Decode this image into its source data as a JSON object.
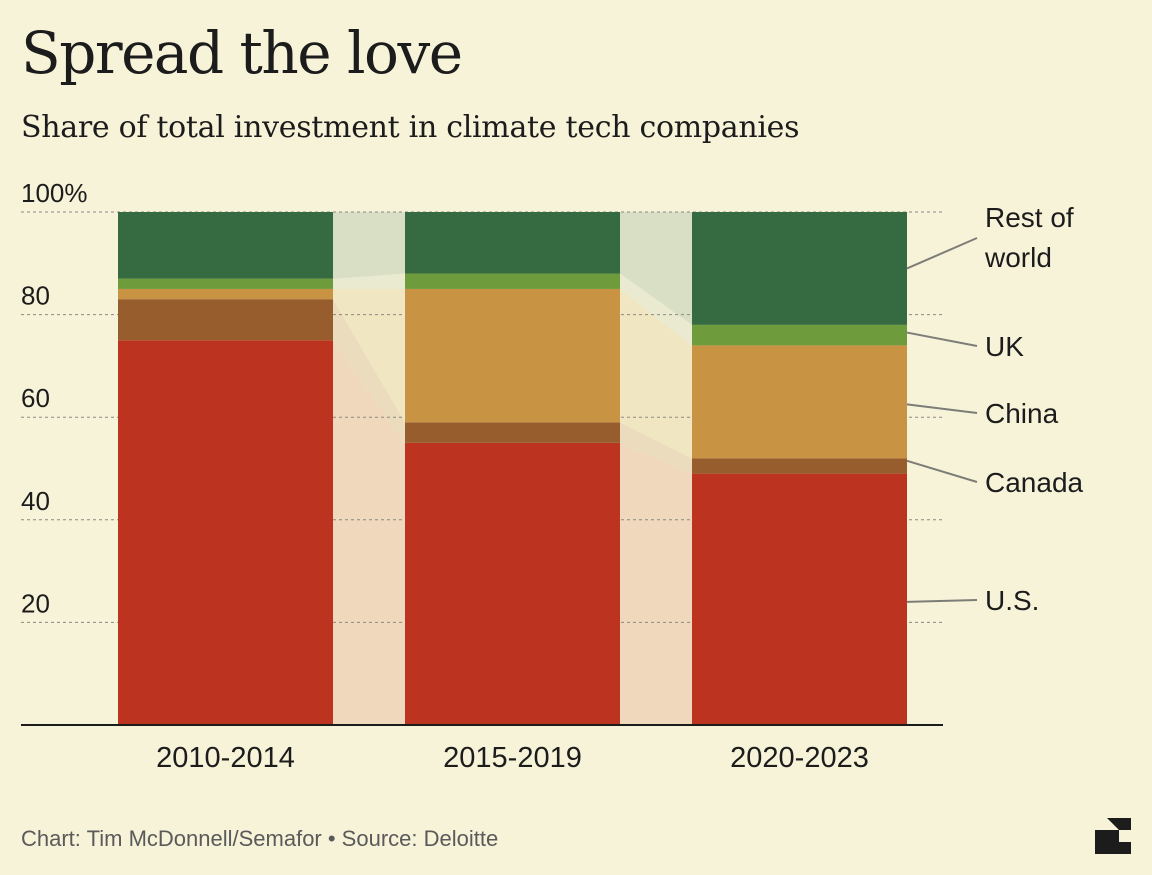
{
  "title": "Spread the love",
  "subtitle": "Share of total investment in climate tech companies",
  "footer": "Chart: Tim McDonnell/Semafor • Source: Deloitte",
  "chart_data": {
    "type": "bar",
    "stacked": true,
    "categories": [
      "2010-2014",
      "2015-2019",
      "2020-2023"
    ],
    "ylim": [
      0,
      100
    ],
    "y_ticks": [
      {
        "value": 20,
        "label": "20"
      },
      {
        "value": 40,
        "label": "40"
      },
      {
        "value": 60,
        "label": "60"
      },
      {
        "value": 80,
        "label": "80"
      },
      {
        "value": 100,
        "label": "100%"
      }
    ],
    "grid": true,
    "legend": "direct labels on right",
    "series": [
      {
        "name": "U.S.",
        "values": [
          75,
          55,
          49
        ],
        "color": "#bc3320"
      },
      {
        "name": "Canada",
        "values": [
          8,
          4,
          3
        ],
        "color": "#975d2d"
      },
      {
        "name": "China",
        "values": [
          2,
          26,
          22
        ],
        "color": "#c99344"
      },
      {
        "name": "UK",
        "values": [
          2,
          3,
          4
        ],
        "color": "#6e9b3b"
      },
      {
        "name": "Rest of world",
        "values": [
          13,
          12,
          22
        ],
        "color": "#366b41"
      }
    ],
    "connector_colors": {
      "U.S.": "#efd8bb",
      "Canada": "#eadcbc",
      "China": "#f1e6c2",
      "UK": "#e9ead0",
      "Rest of world": "#d9dfc5"
    },
    "label_lines": [
      "Rest of\nworld",
      "UK",
      "China",
      "Canada",
      "U.S."
    ]
  }
}
